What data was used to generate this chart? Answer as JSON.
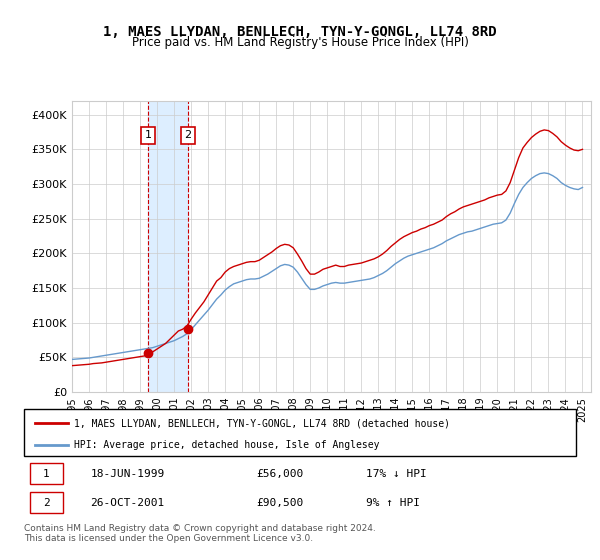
{
  "title": "1, MAES LLYDAN, BENLLECH, TYN-Y-GONGL, LL74 8RD",
  "subtitle": "Price paid vs. HM Land Registry's House Price Index (HPI)",
  "ylabel_ticks": [
    "£0",
    "£50K",
    "£100K",
    "£150K",
    "£200K",
    "£250K",
    "£300K",
    "£350K",
    "£400K"
  ],
  "ytick_vals": [
    0,
    50000,
    100000,
    150000,
    200000,
    250000,
    300000,
    350000,
    400000
  ],
  "ylim": [
    0,
    420000
  ],
  "legend_line1": "1, MAES LLYDAN, BENLLECH, TYN-Y-GONGL, LL74 8RD (detached house)",
  "legend_line2": "HPI: Average price, detached house, Isle of Anglesey",
  "transaction1_date": "18-JUN-1999",
  "transaction1_price": "£56,000",
  "transaction1_hpi": "17% ↓ HPI",
  "transaction2_date": "26-OCT-2001",
  "transaction2_price": "£90,500",
  "transaction2_hpi": "9% ↑ HPI",
  "footer": "Contains HM Land Registry data © Crown copyright and database right 2024.\nThis data is licensed under the Open Government Licence v3.0.",
  "red_color": "#cc0000",
  "blue_color": "#6699cc",
  "shading_color": "#ddeeff",
  "purchase1_year": 1999.46,
  "purchase2_year": 2001.82,
  "purchase1_price": 56000,
  "purchase2_price": 90500,
  "hpi_years": [
    1995,
    1995.25,
    1995.5,
    1995.75,
    1996,
    1996.25,
    1996.5,
    1996.75,
    1997,
    1997.25,
    1997.5,
    1997.75,
    1998,
    1998.25,
    1998.5,
    1998.75,
    1999,
    1999.25,
    1999.5,
    1999.75,
    2000,
    2000.25,
    2000.5,
    2000.75,
    2001,
    2001.25,
    2001.5,
    2001.75,
    2002,
    2002.25,
    2002.5,
    2002.75,
    2003,
    2003.25,
    2003.5,
    2003.75,
    2004,
    2004.25,
    2004.5,
    2004.75,
    2005,
    2005.25,
    2005.5,
    2005.75,
    2006,
    2006.25,
    2006.5,
    2006.75,
    2007,
    2007.25,
    2007.5,
    2007.75,
    2008,
    2008.25,
    2008.5,
    2008.75,
    2009,
    2009.25,
    2009.5,
    2009.75,
    2010,
    2010.25,
    2010.5,
    2010.75,
    2011,
    2011.25,
    2011.5,
    2011.75,
    2012,
    2012.25,
    2012.5,
    2012.75,
    2013,
    2013.25,
    2013.5,
    2013.75,
    2014,
    2014.25,
    2014.5,
    2014.75,
    2015,
    2015.25,
    2015.5,
    2015.75,
    2016,
    2016.25,
    2016.5,
    2016.75,
    2017,
    2017.25,
    2017.5,
    2017.75,
    2018,
    2018.25,
    2018.5,
    2018.75,
    2019,
    2019.25,
    2019.5,
    2019.75,
    2020,
    2020.25,
    2020.5,
    2020.75,
    2021,
    2021.25,
    2021.5,
    2021.75,
    2022,
    2022.25,
    2022.5,
    2022.75,
    2023,
    2023.25,
    2023.5,
    2023.75,
    2024,
    2024.25,
    2024.5,
    2024.75,
    2025
  ],
  "hpi_values": [
    47000,
    47500,
    48000,
    48500,
    49000,
    50000,
    51000,
    52000,
    53000,
    54000,
    55000,
    56000,
    57000,
    58000,
    59000,
    60000,
    61000,
    62000,
    63000,
    64000,
    66000,
    68000,
    70000,
    72000,
    74000,
    77000,
    80000,
    84000,
    90000,
    97000,
    104000,
    111000,
    118000,
    126000,
    134000,
    140000,
    147000,
    152000,
    156000,
    158000,
    160000,
    162000,
    163000,
    163000,
    164000,
    167000,
    170000,
    174000,
    178000,
    182000,
    184000,
    183000,
    180000,
    173000,
    164000,
    155000,
    148000,
    148000,
    150000,
    153000,
    155000,
    157000,
    158000,
    157000,
    157000,
    158000,
    159000,
    160000,
    161000,
    162000,
    163000,
    165000,
    168000,
    171000,
    175000,
    180000,
    185000,
    189000,
    193000,
    196000,
    198000,
    200000,
    202000,
    204000,
    206000,
    208000,
    211000,
    214000,
    218000,
    221000,
    224000,
    227000,
    229000,
    231000,
    232000,
    234000,
    236000,
    238000,
    240000,
    242000,
    243000,
    244000,
    248000,
    258000,
    272000,
    285000,
    295000,
    302000,
    308000,
    312000,
    315000,
    316000,
    315000,
    312000,
    308000,
    302000,
    298000,
    295000,
    293000,
    292000,
    295000
  ],
  "red_years": [
    1995,
    1995.25,
    1995.5,
    1995.75,
    1996,
    1996.25,
    1996.5,
    1996.75,
    1997,
    1997.25,
    1997.5,
    1997.75,
    1998,
    1998.25,
    1998.5,
    1998.75,
    1999,
    1999.25,
    1999.5,
    1999.75,
    2000,
    2000.25,
    2000.5,
    2000.75,
    2001,
    2001.25,
    2001.5,
    2001.75,
    2002,
    2002.25,
    2002.5,
    2002.75,
    2003,
    2003.25,
    2003.5,
    2003.75,
    2004,
    2004.25,
    2004.5,
    2004.75,
    2005,
    2005.25,
    2005.5,
    2005.75,
    2006,
    2006.25,
    2006.5,
    2006.75,
    2007,
    2007.25,
    2007.5,
    2007.75,
    2008,
    2008.25,
    2008.5,
    2008.75,
    2009,
    2009.25,
    2009.5,
    2009.75,
    2010,
    2010.25,
    2010.5,
    2010.75,
    2011,
    2011.25,
    2011.5,
    2011.75,
    2012,
    2012.25,
    2012.5,
    2012.75,
    2013,
    2013.25,
    2013.5,
    2013.75,
    2014,
    2014.25,
    2014.5,
    2014.75,
    2015,
    2015.25,
    2015.5,
    2015.75,
    2016,
    2016.25,
    2016.5,
    2016.75,
    2017,
    2017.25,
    2017.5,
    2017.75,
    2018,
    2018.25,
    2018.5,
    2018.75,
    2019,
    2019.25,
    2019.5,
    2019.75,
    2020,
    2020.25,
    2020.5,
    2020.75,
    2021,
    2021.25,
    2021.5,
    2021.75,
    2022,
    2022.25,
    2022.5,
    2022.75,
    2023,
    2023.25,
    2023.5,
    2023.75,
    2024,
    2024.25,
    2024.5,
    2024.75,
    2025
  ],
  "red_values": [
    38000,
    38500,
    39000,
    39500,
    40000,
    41000,
    41500,
    42000,
    43000,
    44000,
    45000,
    46000,
    47000,
    48000,
    49000,
    50000,
    51000,
    52000,
    56000,
    58000,
    62000,
    66000,
    70000,
    76000,
    82000,
    88000,
    90500,
    95000,
    105000,
    114000,
    122000,
    130000,
    140000,
    150000,
    160000,
    165000,
    173000,
    178000,
    181000,
    183000,
    185000,
    187000,
    188000,
    188000,
    190000,
    194000,
    198000,
    202000,
    207000,
    211000,
    213000,
    212000,
    208000,
    199000,
    189000,
    178000,
    170000,
    170000,
    173000,
    177000,
    179000,
    181000,
    183000,
    181000,
    181000,
    183000,
    184000,
    185000,
    186000,
    188000,
    190000,
    192000,
    195000,
    199000,
    204000,
    210000,
    215000,
    220000,
    224000,
    227000,
    230000,
    232000,
    235000,
    237000,
    240000,
    242000,
    245000,
    248000,
    253000,
    257000,
    260000,
    264000,
    267000,
    269000,
    271000,
    273000,
    275000,
    277000,
    280000,
    282000,
    284000,
    285000,
    290000,
    302000,
    320000,
    338000,
    352000,
    360000,
    367000,
    372000,
    376000,
    378000,
    377000,
    373000,
    368000,
    361000,
    356000,
    352000,
    349000,
    348000,
    350000
  ],
  "xtick_years": [
    1995,
    1996,
    1997,
    1998,
    1999,
    2000,
    2001,
    2002,
    2003,
    2004,
    2005,
    2006,
    2007,
    2008,
    2009,
    2010,
    2011,
    2012,
    2013,
    2014,
    2015,
    2016,
    2017,
    2018,
    2019,
    2020,
    2021,
    2022,
    2023,
    2024,
    2025
  ]
}
